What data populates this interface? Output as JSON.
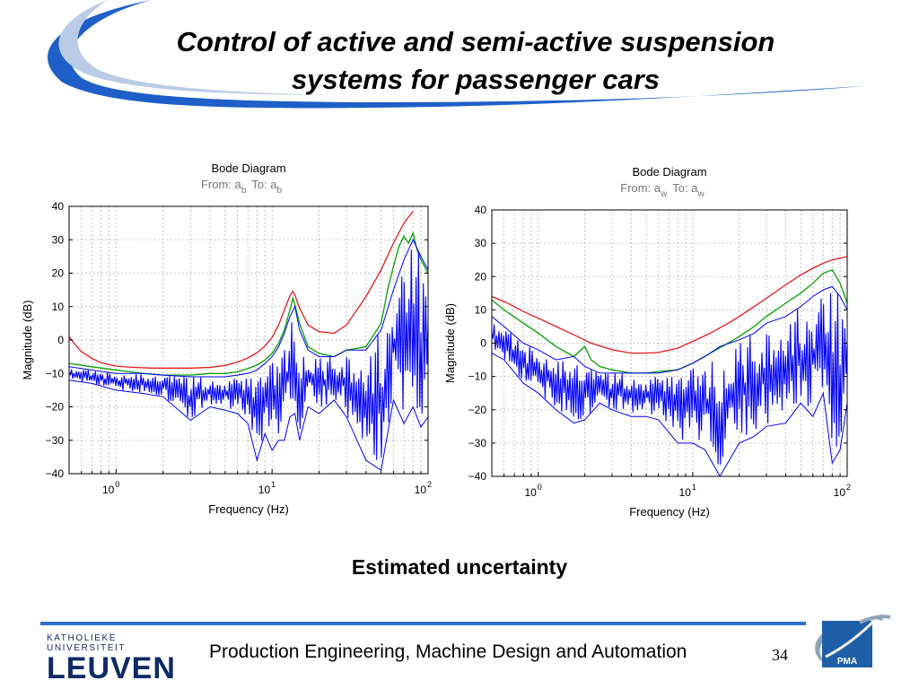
{
  "slide": {
    "title_line1": "Control of active and semi-active suspension",
    "title_line2": "systems for passenger cars",
    "caption": "Estimated uncertainty",
    "footer_text": "Production Engineering, Machine Design and Automation",
    "page_number": "34"
  },
  "logos": {
    "university_small": "KATHOLIEKE UNIVERSITEIT",
    "university_big": "LEUVEN",
    "dept": "PMA"
  },
  "colors": {
    "title_swoosh": "#1f5fc8",
    "footer_rule": "#2e6fd0",
    "envelope": "#e31a1c",
    "model_set": "#00a000",
    "measured": "#0000ff",
    "logo_navy": "#0f2a66"
  },
  "chart_data": [
    {
      "type": "line",
      "title": "Bode Diagram",
      "subtitle_from": "From: a",
      "subtitle_from_sub": "b",
      "subtitle_to": "To: a",
      "subtitle_to_sub": "b",
      "xlabel": "Frequency  (Hz)",
      "ylabel": "Magnitude (dB)",
      "xscale": "log",
      "xlim": [
        0.5,
        100
      ],
      "ylim": [
        -40,
        40
      ],
      "yticks": [
        "40",
        "30",
        "20",
        "10",
        "0",
        "−10",
        "−20",
        "−30",
        "−40"
      ],
      "xticks": [
        {
          "base": "10",
          "exp": "0"
        },
        {
          "base": "10",
          "exp": "1"
        },
        {
          "base": "10",
          "exp": "2"
        }
      ],
      "grid": true,
      "series": [
        {
          "role": "upper bound",
          "color": "#e31a1c",
          "x": [
            0.5,
            0.55,
            0.6,
            0.7,
            0.8,
            1,
            1.3,
            1.7,
            2.2,
            3,
            4,
            5,
            6,
            7,
            8,
            9,
            10,
            11,
            12,
            13,
            13.6,
            14,
            15,
            17,
            20,
            25,
            30,
            40,
            50,
            60,
            70,
            80
          ],
          "y": [
            1,
            -1.5,
            -3.5,
            -5.5,
            -6.8,
            -7.8,
            -8.2,
            -8.4,
            -8.4,
            -8.4,
            -8.2,
            -7.6,
            -6.6,
            -5.4,
            -3.8,
            -1.8,
            0.8,
            4.5,
            9,
            13.2,
            14.6,
            13.5,
            9.5,
            4.5,
            2.5,
            2,
            4.5,
            13,
            21,
            29,
            35,
            38.5
          ]
        },
        {
          "role": "lower bound",
          "color": "#00a000",
          "x": [
            0.5,
            0.7,
            1,
            1.5,
            2,
            3,
            4,
            5,
            6,
            7,
            8,
            9,
            10,
            11,
            12,
            13,
            13.6,
            14,
            15,
            17,
            20,
            25,
            30,
            40,
            50,
            55,
            60,
            65,
            70,
            75,
            80,
            85,
            90,
            95,
            100
          ],
          "y": [
            -7,
            -8,
            -9,
            -10,
            -10.5,
            -10.5,
            -10,
            -10,
            -9.5,
            -8.5,
            -7.5,
            -6,
            -4,
            -1,
            3,
            9,
            12.5,
            10.5,
            5,
            -2,
            -4,
            -5,
            -3,
            -2,
            5,
            15,
            22,
            28,
            31,
            29,
            32,
            27,
            24,
            22,
            20
          ]
        },
        {
          "role": "measured spread",
          "color": "#0000ff",
          "x": [
            0.5,
            0.7,
            1,
            1.5,
            2,
            3,
            4,
            5,
            6,
            7,
            8,
            9,
            10,
            11,
            12,
            13,
            14,
            15,
            17,
            20,
            25,
            30,
            40,
            50,
            60,
            70,
            80,
            90,
            100
          ],
          "y_min": [
            -12,
            -13,
            -15,
            -16,
            -17,
            -24,
            -20,
            -21,
            -22,
            -25,
            -36,
            -28,
            -33,
            -30,
            -30,
            -23,
            -22,
            -30,
            -20,
            -22,
            -18,
            -23,
            -36,
            -39,
            -18,
            -25,
            -20,
            -26,
            -23
          ],
          "y_max": [
            -8,
            -9,
            -10,
            -10,
            -10.5,
            -11,
            -11,
            -11,
            -10.5,
            -10,
            -9,
            -7,
            -5,
            -2,
            2,
            7,
            10,
            3,
            -3,
            -5,
            -5,
            -3,
            -3,
            3,
            15,
            24,
            30,
            25,
            21
          ]
        }
      ]
    },
    {
      "type": "line",
      "title": "Bode Diagram",
      "subtitle_from": "From: a",
      "subtitle_from_sub": "w",
      "subtitle_to": "To: a",
      "subtitle_to_sub": "w",
      "xlabel": "Frequency  (Hz)",
      "ylabel": "Magnitude (dB)",
      "xscale": "log",
      "xlim": [
        0.5,
        100
      ],
      "ylim": [
        -40,
        40
      ],
      "yticks": [
        "40",
        "30",
        "20",
        "10",
        "0",
        "−10",
        "−20",
        "−30",
        "−40"
      ],
      "xticks": [
        {
          "base": "10",
          "exp": "0"
        },
        {
          "base": "10",
          "exp": "1"
        },
        {
          "base": "10",
          "exp": "2"
        }
      ],
      "grid": true,
      "series": [
        {
          "role": "upper bound",
          "color": "#e31a1c",
          "x": [
            0.5,
            0.6,
            0.7,
            0.8,
            1,
            1.3,
            1.7,
            2.2,
            3,
            4,
            5,
            6,
            8,
            10,
            13,
            17,
            20,
            25,
            30,
            40,
            50,
            60,
            70,
            80,
            90,
            100
          ],
          "y": [
            14,
            12.5,
            11,
            9.5,
            7.5,
            5,
            2.5,
            0,
            -2,
            -3,
            -3,
            -2.8,
            -1.5,
            0.5,
            3,
            6,
            8,
            11,
            13.5,
            17.5,
            20.5,
            22.5,
            24,
            25,
            25.5,
            26
          ]
        },
        {
          "role": "lower bound",
          "color": "#00a000",
          "x": [
            0.5,
            0.6,
            0.8,
            1,
            1.3,
            1.7,
            2,
            2.2,
            2.5,
            3,
            4,
            5,
            6,
            8,
            10,
            13,
            17,
            20,
            25,
            30,
            40,
            50,
            60,
            70,
            80,
            90,
            100
          ],
          "y": [
            13,
            10,
            6,
            3,
            -1,
            -4,
            -1,
            -5,
            -7,
            -8,
            -9,
            -9,
            -8.5,
            -8,
            -6,
            -3,
            0,
            2,
            5,
            8,
            12,
            15,
            18,
            21,
            22,
            18,
            12
          ]
        },
        {
          "role": "measured spread",
          "color": "#0000ff",
          "x": [
            0.5,
            0.6,
            0.8,
            1,
            1.3,
            1.7,
            2,
            2.5,
            3,
            4,
            5,
            6,
            8,
            10,
            12,
            15,
            20,
            25,
            30,
            40,
            50,
            60,
            70,
            80,
            90,
            100
          ],
          "y_min": [
            -3,
            -5,
            -12,
            -15,
            -20,
            -24,
            -23,
            -18,
            -20,
            -22,
            -22,
            -23,
            -30,
            -30,
            -32,
            -40,
            -30,
            -28,
            -25,
            -24,
            -18,
            -22,
            -15,
            -36,
            -32,
            -18
          ],
          "y_max": [
            8,
            5,
            0,
            -2,
            -5,
            -4,
            -7,
            -9,
            -9,
            -9,
            -9,
            -9,
            -8,
            -6,
            -4,
            -1,
            1,
            3,
            6,
            8,
            11,
            14,
            16,
            17,
            14,
            10
          ]
        }
      ]
    }
  ]
}
